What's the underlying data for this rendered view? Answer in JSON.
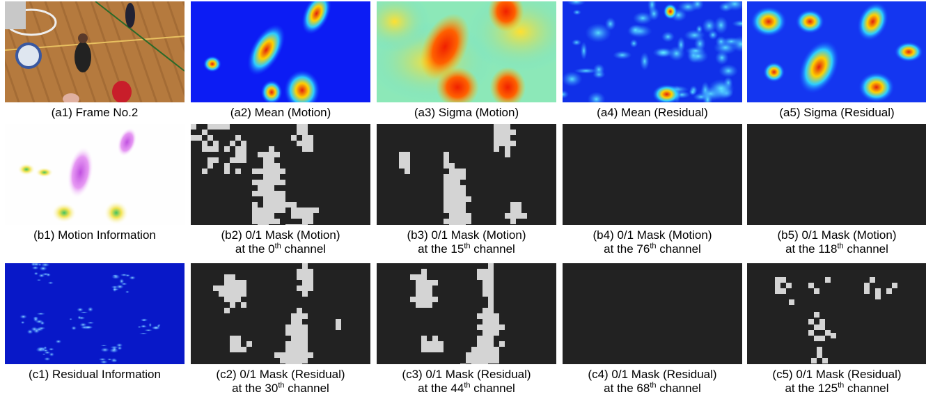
{
  "rows": [
    [
      {
        "caption": "(a1) Frame No.2"
      },
      {
        "caption": "(a2) Mean (Motion)"
      },
      {
        "caption": "(a3) Sigma (Motion)"
      },
      {
        "caption": "(a4) Mean (Residual)"
      },
      {
        "caption": "(a5) Sigma (Residual)"
      }
    ],
    [
      {
        "caption": "(b1) Motion Information"
      },
      {
        "caption": "(b2) 0/1 Mask (Motion)",
        "channel": {
          "text": "at the 0",
          "sup": "th",
          "rest": "channel"
        }
      },
      {
        "caption": "(b3) 0/1 Mask (Motion)",
        "channel": {
          "text": "at the 15",
          "sup": "th",
          "rest": "channel"
        }
      },
      {
        "caption": "(b4) 0/1 Mask (Motion)",
        "channel": {
          "text": "at the 76",
          "sup": "th",
          "rest": "channel"
        }
      },
      {
        "caption": "(b5) 0/1 Mask (Motion)",
        "channel": {
          "text": "at the 118",
          "sup": "th",
          "rest": "channel"
        }
      }
    ],
    [
      {
        "caption": "(c1) Residual Information"
      },
      {
        "caption": "(c2) 0/1 Mask (Residual)",
        "channel": {
          "text": "at the 30",
          "sup": "th",
          "rest": "channel"
        }
      },
      {
        "caption": "(c3) 0/1 Mask (Residual)",
        "channel": {
          "text": "at the 44",
          "sup": "th",
          "rest": "channel"
        }
      },
      {
        "caption": "(c4) 0/1 Mask (Residual)",
        "channel": {
          "text": "at the 68",
          "sup": "th",
          "rest": "channel"
        }
      },
      {
        "caption": "(c5) 0/1 Mask (Residual)",
        "channel": {
          "text": "at the 125",
          "sup": "th",
          "rest": "channel"
        }
      }
    ]
  ]
}
